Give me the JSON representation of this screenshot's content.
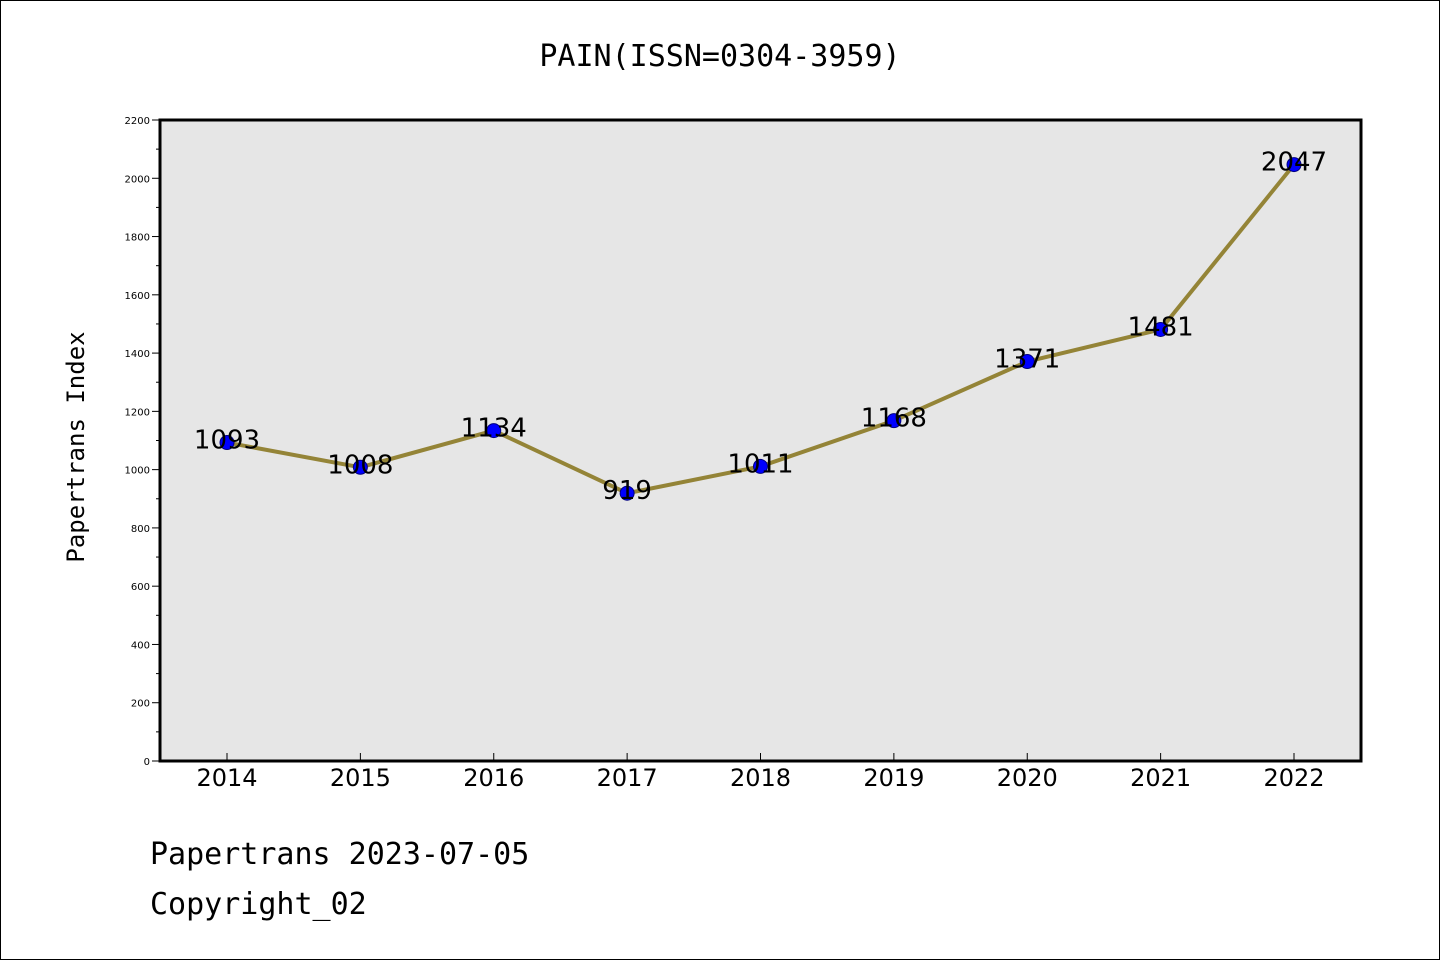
{
  "chart_data": {
    "type": "line",
    "title": "PAIN(ISSN=0304-3959)",
    "xlabel": "",
    "ylabel": "Papertrans Index",
    "categories": [
      "2014",
      "2015",
      "2016",
      "2017",
      "2018",
      "2019",
      "2020",
      "2021",
      "2022"
    ],
    "series": [
      {
        "values": [
          1093,
          1008,
          1134,
          919,
          1011,
          1168,
          1371,
          1481,
          2047
        ]
      }
    ],
    "data_labels": [
      "1093",
      "1008",
      "1134",
      "919",
      "1011",
      "1168",
      "1371",
      "1481",
      "2047"
    ],
    "ylim": [
      0,
      2200
    ],
    "yticks": [
      "0",
      "200",
      "400",
      "600",
      "800",
      "1000",
      "1200",
      "1400",
      "1600",
      "1800",
      "2000",
      "2200"
    ],
    "grid": false,
    "legend": "none",
    "colors": {
      "line": "#948437",
      "marker_fill": "#0000ff",
      "marker_edge": "#000080",
      "plot_background": "#e6e6e6",
      "axes_edge": "#000000"
    }
  },
  "footer": {
    "line1": "Papertrans 2023-07-05",
    "line2": "Copyright_02"
  }
}
